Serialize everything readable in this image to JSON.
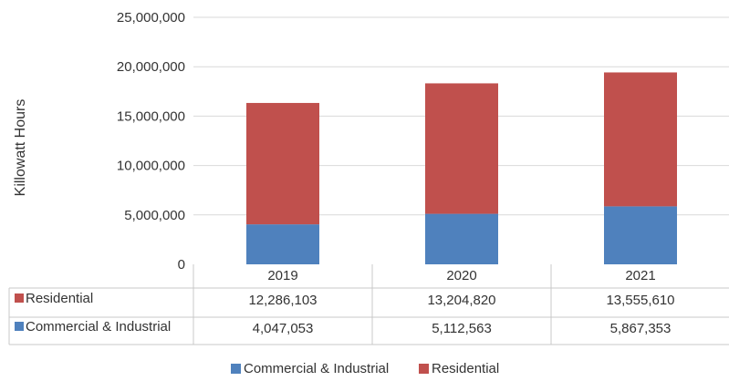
{
  "chart_data": {
    "type": "bar",
    "stacked": true,
    "ylabel": "Killowatt Hours",
    "ylim": [
      0,
      25000000
    ],
    "yticks": [
      "0",
      "5,000,000",
      "10,000,000",
      "15,000,000",
      "20,000,000",
      "25,000,000"
    ],
    "categories": [
      "2019",
      "2020",
      "2021"
    ],
    "series": [
      {
        "name": "Commercial & Industrial",
        "color": "#4f81bd",
        "values": [
          4047053,
          5112563,
          5867353
        ],
        "labels": [
          "4,047,053",
          "5,112,563",
          "5,867,353"
        ]
      },
      {
        "name": "Residential",
        "color": "#c0504d",
        "values": [
          12286103,
          13204820,
          13555610
        ],
        "labels": [
          "12,286,103",
          "13,204,820",
          "13,555,610"
        ]
      }
    ],
    "data_table": true,
    "table_row_order": [
      "Residential",
      "Commercial & Industrial"
    ],
    "legend": "bottom",
    "grid": true
  }
}
